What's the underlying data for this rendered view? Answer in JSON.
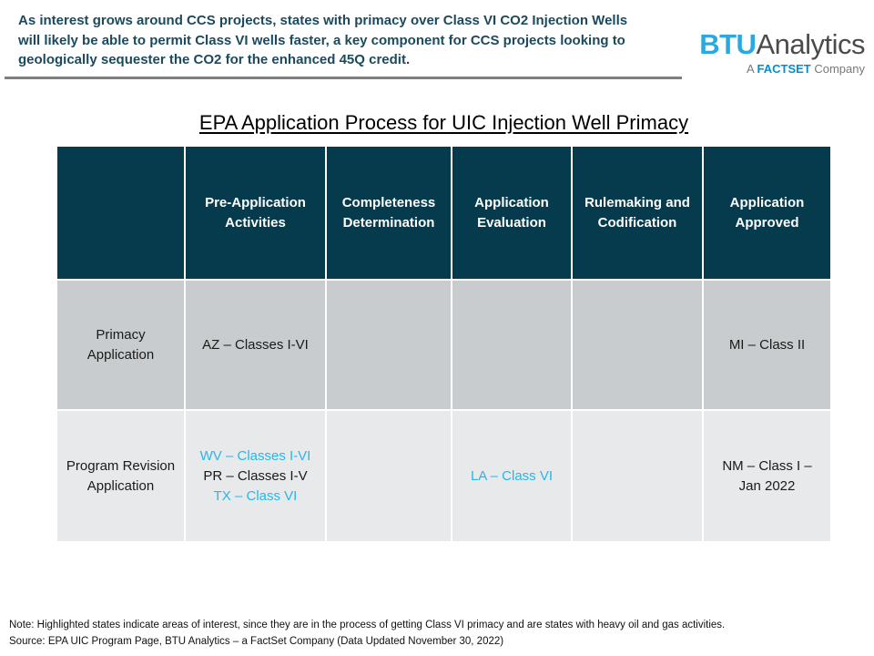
{
  "intro": {
    "lines": [
      "As interest grows around CCS projects, states with primacy over Class VI CO2 Injection Wells",
      "will likely be able to permit Class VI wells faster, a key component for CCS projects looking to",
      "geologically sequester the CO2 for the enhanced 45Q credit."
    ]
  },
  "logo": {
    "btu": "BTU",
    "analytics": "Analytics",
    "sub_prefix": "A ",
    "factset": "FACTSET",
    "sub_suffix": " Company"
  },
  "title": "EPA Application Process for UIC Injection Well Primacy",
  "table": {
    "columns": [
      "Pre-Application Activities",
      "Completeness Determination",
      "Application Evaluation",
      "Rulemaking and Codification",
      "Application Approved"
    ],
    "rows": [
      {
        "label": "Primacy Application",
        "cells": [
          [
            {
              "text": "AZ – Classes I-VI",
              "highlighted": false
            }
          ],
          [],
          [],
          [],
          [
            {
              "text": "MI – Class II",
              "highlighted": false
            }
          ]
        ]
      },
      {
        "label": "Program Revision Application",
        "cells": [
          [
            {
              "text": "WV – Classes I-VI",
              "highlighted": true
            },
            {
              "text": "PR – Classes I-V",
              "highlighted": false
            },
            {
              "text": "TX – Class VI",
              "highlighted": true
            }
          ],
          [],
          [
            {
              "text": "LA – Class VI",
              "highlighted": true
            }
          ],
          [],
          [
            {
              "text": "NM – Class I – Jan 2022",
              "highlighted": false
            }
          ]
        ]
      }
    ]
  },
  "footer": {
    "note": "Note:  Highlighted states indicate areas of interest, since they are in the process of getting  Class VI primacy and are states with heavy oil and gas activities.",
    "source": "Source: EPA UIC Program Page, BTU Analytics – a FactSet Company (Data Updated November 30, 2022)"
  },
  "colors": {
    "header_bg": "#063B4D",
    "row1_bg": "#C9CCCE",
    "row2_bg": "#E8E9EA",
    "highlight": "#29B5EA",
    "intro_text": "#1B4A5E",
    "btu_blue": "#29A9E0",
    "factset_blue": "#0090D0",
    "divider_gray": "#7F7F7F"
  }
}
